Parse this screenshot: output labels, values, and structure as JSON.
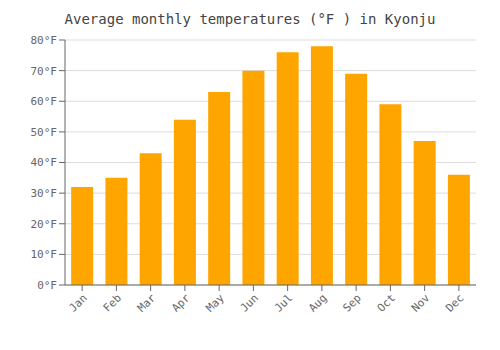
{
  "chart_data": {
    "type": "bar",
    "title": "Average monthly temperatures (°F ) in Kyonju",
    "categories": [
      "Jan",
      "Feb",
      "Mar",
      "Apr",
      "May",
      "Jun",
      "Jul",
      "Aug",
      "Sep",
      "Oct",
      "Nov",
      "Dec"
    ],
    "values": [
      32,
      35,
      43,
      54,
      63,
      70,
      76,
      78,
      69,
      59,
      47,
      36
    ],
    "color": "#FFA500",
    "ylim": [
      0,
      80
    ],
    "yticks": [
      {
        "value": 0,
        "label": "0°F"
      },
      {
        "value": 10,
        "label": "10°F"
      },
      {
        "value": 20,
        "label": "20°F"
      },
      {
        "value": 30,
        "label": "30°F"
      },
      {
        "value": 40,
        "label": "40°F"
      },
      {
        "value": 50,
        "label": "50°F"
      },
      {
        "value": 60,
        "label": "60°F"
      },
      {
        "value": 70,
        "label": "70°F"
      },
      {
        "value": 80,
        "label": "80°F"
      }
    ],
    "grid": true
  }
}
